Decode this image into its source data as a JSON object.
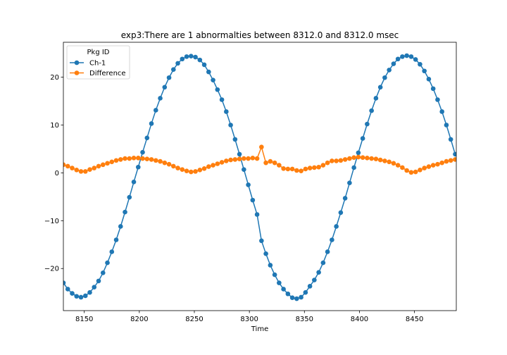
{
  "chart_data": {
    "type": "line",
    "title": "exp3:There are 1 abnormalties between 8312.0 and 8312.0 msec",
    "xlabel": "Time",
    "ylabel": "",
    "xlim": [
      8131,
      8488
    ],
    "ylim": [
      -28.8,
      27.3
    ],
    "xticks": [
      8150,
      8200,
      8250,
      8300,
      8350,
      8400,
      8450
    ],
    "yticks": [
      -20,
      -10,
      0,
      10,
      20
    ],
    "grid": false,
    "legend": {
      "title": "Pkg ID",
      "position": "top-left"
    },
    "x": [
      8131,
      8135,
      8139,
      8143,
      8147,
      8151,
      8155,
      8159,
      8163,
      8167,
      8171,
      8175,
      8179,
      8183,
      8187,
      8191,
      8195,
      8199,
      8203,
      8207,
      8211,
      8215,
      8219,
      8223,
      8227,
      8231,
      8235,
      8239,
      8243,
      8247,
      8251,
      8255,
      8259,
      8263,
      8267,
      8271,
      8275,
      8279,
      8283,
      8287,
      8291,
      8295,
      8299,
      8303,
      8307,
      8311,
      8315,
      8319,
      8323,
      8327,
      8331,
      8335,
      8339,
      8343,
      8347,
      8351,
      8355,
      8359,
      8363,
      8367,
      8371,
      8375,
      8379,
      8383,
      8387,
      8391,
      8395,
      8399,
      8403,
      8407,
      8411,
      8415,
      8419,
      8423,
      8427,
      8431,
      8435,
      8439,
      8443,
      8447,
      8451,
      8455,
      8459,
      8463,
      8467,
      8471,
      8475,
      8479,
      8483,
      8487
    ],
    "series": [
      {
        "name": "Ch-1",
        "color": "#1f77b4",
        "values": [
          -23.0,
          -24.3,
          -25.2,
          -25.8,
          -26.0,
          -25.7,
          -25.0,
          -23.9,
          -22.6,
          -20.9,
          -18.8,
          -16.5,
          -14.0,
          -11.2,
          -8.2,
          -5.1,
          -1.9,
          1.2,
          4.3,
          7.3,
          10.3,
          13.1,
          15.6,
          17.9,
          19.9,
          21.6,
          22.9,
          23.8,
          24.3,
          24.4,
          24.2,
          23.6,
          22.6,
          21.1,
          19.4,
          17.4,
          15.3,
          12.8,
          10.0,
          7.0,
          3.9,
          0.7,
          -2.5,
          -5.7,
          -8.7,
          -14.2,
          -16.9,
          -19.3,
          -21.3,
          -23.0,
          -24.3,
          -25.3,
          -26.1,
          -26.3,
          -26.0,
          -25.0,
          -23.7,
          -22.4,
          -20.8,
          -18.8,
          -16.5,
          -14.0,
          -11.2,
          -8.3,
          -5.3,
          -2.1,
          1.1,
          4.2,
          7.2,
          10.2,
          13.0,
          15.6,
          17.9,
          19.9,
          21.5,
          22.8,
          23.8,
          24.3,
          24.5,
          24.3,
          23.7,
          22.7,
          21.3,
          19.6,
          17.6,
          15.3,
          12.8,
          10.0,
          7.0,
          3.9
        ]
      },
      {
        "name": "Difference",
        "color": "#ff7f0e",
        "values": [
          1.7,
          1.4,
          1.0,
          0.6,
          0.3,
          0.3,
          0.7,
          1.0,
          1.4,
          1.7,
          2.0,
          2.3,
          2.6,
          2.8,
          3.0,
          3.0,
          3.1,
          3.1,
          3.0,
          2.9,
          2.8,
          2.6,
          2.4,
          2.1,
          1.8,
          1.4,
          1.0,
          0.7,
          0.4,
          0.2,
          0.3,
          0.6,
          0.9,
          1.3,
          1.6,
          1.9,
          2.2,
          2.5,
          2.7,
          2.8,
          2.9,
          3.0,
          3.0,
          3.1,
          3.0,
          5.4,
          2.1,
          2.4,
          2.1,
          1.6,
          0.9,
          0.8,
          0.8,
          0.5,
          0.4,
          0.8,
          1.0,
          1.1,
          1.2,
          1.6,
          2.1,
          2.5,
          2.5,
          2.6,
          2.8,
          3.0,
          3.2,
          3.3,
          3.2,
          3.1,
          3.0,
          2.9,
          2.7,
          2.5,
          2.3,
          2.0,
          1.6,
          1.1,
          0.5,
          0.1,
          0.2,
          0.6,
          1.0,
          1.3,
          1.6,
          1.8,
          2.1,
          2.4,
          2.6,
          2.8
        ]
      }
    ]
  }
}
